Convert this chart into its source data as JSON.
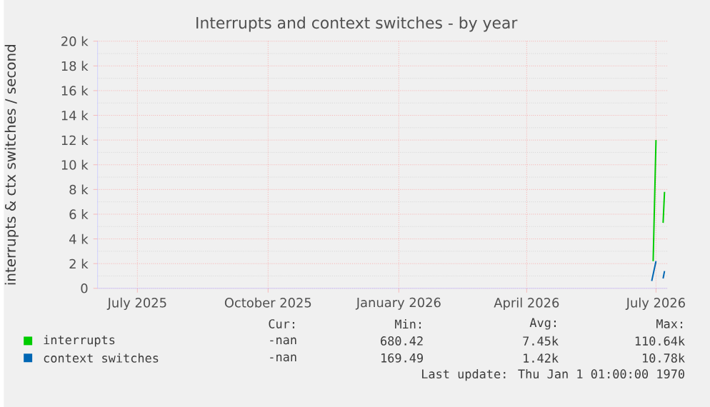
{
  "chart_data": {
    "type": "line",
    "title": "Interrupts and context switches - by year",
    "ylabel": "interrupts & ctx switches / second",
    "xlim": [
      "2025-06-03",
      "2026-07-09"
    ],
    "xticks": [
      {
        "value": "2025-07-01",
        "label": "July 2025"
      },
      {
        "value": "2025-10-01",
        "label": "October 2025"
      },
      {
        "value": "2026-01-01",
        "label": "January 2026"
      },
      {
        "value": "2026-04-01",
        "label": "April 2026"
      },
      {
        "value": "2026-07-01",
        "label": "July 2026"
      }
    ],
    "ylim": [
      0,
      20000
    ],
    "yticks": [
      0,
      {
        "value": 2000,
        "label": "2 k"
      },
      {
        "value": 4000,
        "label": "4 k"
      },
      {
        "value": 6000,
        "label": "6 k"
      },
      {
        "value": 8000,
        "label": "8 k"
      },
      {
        "value": 10000,
        "label": "10 k"
      },
      {
        "value": 12000,
        "label": "12 k"
      },
      {
        "value": 14000,
        "label": "14 k"
      },
      {
        "value": 16000,
        "label": "16 k"
      },
      {
        "value": 18000,
        "label": "18 k"
      },
      {
        "value": 20000,
        "label": "20 k"
      }
    ],
    "grid": true,
    "legend": "bottom",
    "series": [
      {
        "name": "interrupts",
        "color": "#00cc00",
        "x": [
          "2026-06-29",
          "2026-07-01",
          "2026-07-03",
          "2026-07-06",
          "2026-07-07"
        ],
        "values": [
          2200,
          12000,
          null,
          5300,
          7800
        ]
      },
      {
        "name": "context switches",
        "color": "#0066b3",
        "x": [
          "2026-06-28",
          "2026-07-01",
          "2026-07-03",
          "2026-07-06",
          "2026-07-07"
        ],
        "values": [
          600,
          2200,
          null,
          800,
          1400
        ]
      }
    ],
    "annotations": [
      "Cur:",
      "Min:",
      "Avg:",
      "Max:",
      "-nan",
      "680.42",
      "7.45k",
      "110.64k",
      "-nan",
      "169.49",
      "1.42k",
      "10.78k",
      "Last update: Thu Jan  1 01:00:00 1970"
    ]
  }
}
